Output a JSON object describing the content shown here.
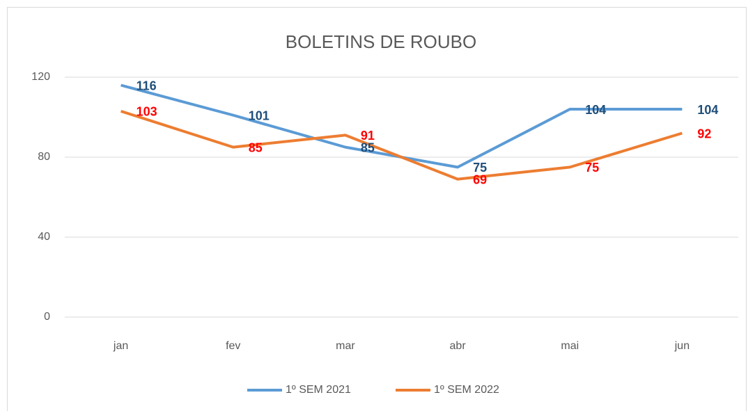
{
  "chart_data": {
    "type": "line",
    "title": "BOLETINS DE ROUBO",
    "categories": [
      "jan",
      "fev",
      "mar",
      "abr",
      "mai",
      "jun"
    ],
    "series": [
      {
        "name": "1º SEM 2021",
        "color": "#5b9bd5",
        "label_color": "#1f4e79",
        "values": [
          116,
          101,
          85,
          75,
          104,
          104
        ]
      },
      {
        "name": "1º SEM 2022",
        "color": "#ed7d31",
        "label_color": "#ff0000",
        "values": [
          103,
          85,
          91,
          69,
          75,
          92
        ]
      }
    ],
    "ylim": [
      0,
      120
    ],
    "yticks": [
      0,
      40,
      80,
      120
    ],
    "grid": true,
    "legend": "bottom"
  }
}
